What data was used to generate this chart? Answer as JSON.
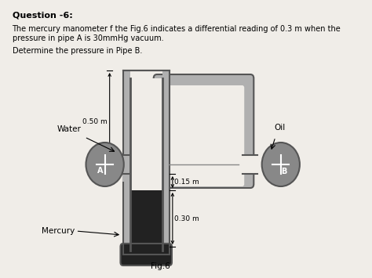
{
  "title_bold": "Question -6:",
  "text_line1": "The mercury manometer f the Fig.6 indicates a differential reading of 0.3 m when the",
  "text_line2": "pressure in pipe A is 30mmHg vacuum.",
  "text_line3": "Determine the pressure in Pipe B.",
  "fig_label": "Fig.6",
  "label_water": "Water",
  "label_oil": "Oil",
  "label_mercury": "Mercury",
  "label_A": "A",
  "label_B": "B",
  "dim_050": "0.50 m",
  "dim_015": "0.15 m",
  "dim_030": "0.30 m",
  "bg_color": "#f0ede8",
  "pipe_wall_color": "#aaaaaa",
  "pipe_edge_color": "#555555",
  "mercury_color": "#1a1a1a",
  "circle_fill": "#888888",
  "text_color": "#000000"
}
